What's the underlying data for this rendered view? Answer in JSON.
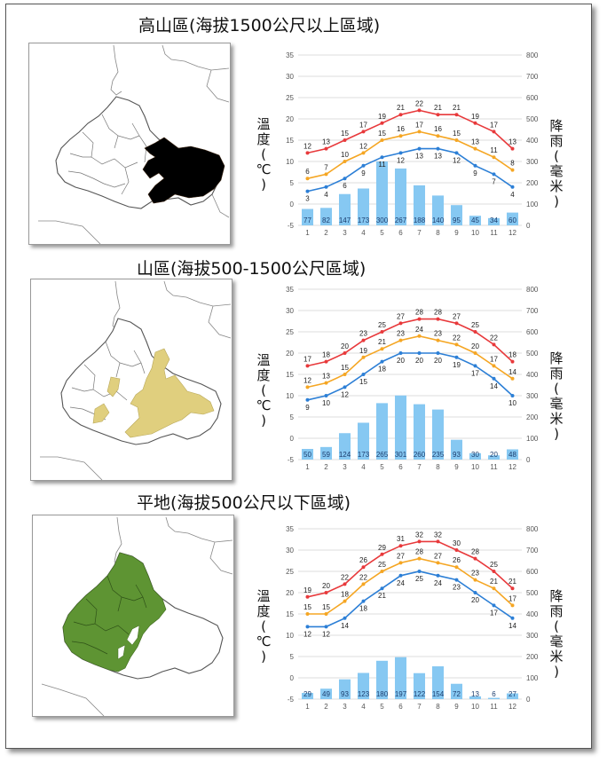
{
  "sections": [
    {
      "title": "高山區(海拔1500公尺以上區域)",
      "region_color": "#5a3417",
      "temp_axis_label": [
        "溫",
        "度",
        "(",
        "℃",
        ")"
      ],
      "rain_axis_label": [
        "降",
        "雨",
        "(",
        "毫",
        "米",
        ")"
      ]
    },
    {
      "title": "山區(海拔500-1500公尺區域)",
      "region_color": "#e0cf7e",
      "temp_axis_label": [
        "溫",
        "度",
        "(",
        "℃",
        ")"
      ],
      "rain_axis_label": [
        "降",
        "雨",
        "(",
        "毫",
        "米",
        ")"
      ]
    },
    {
      "title": "平地(海拔500公尺以下區域)",
      "region_color": "#5e9433",
      "temp_axis_label": [
        "溫",
        "度",
        "(",
        "℃",
        ")"
      ],
      "rain_axis_label": [
        "降",
        "雨",
        "(",
        "毫",
        "米",
        ")"
      ]
    }
  ],
  "colors": {
    "max_line": "#e8393b",
    "mean_line": "#f5a623",
    "min_line": "#2c7fd6",
    "rain_bar": "#86c8f2",
    "grid": "#dddddd"
  },
  "chart_data": [
    {
      "type": "bar+line",
      "x": [
        1,
        2,
        3,
        4,
        5,
        6,
        7,
        8,
        9,
        10,
        11,
        12
      ],
      "temp_ylim": [
        -5,
        35
      ],
      "temp_ticks": [
        -5,
        0,
        5,
        10,
        15,
        20,
        25,
        30,
        35
      ],
      "rain_ylim": [
        0,
        800
      ],
      "rain_ticks": [
        0,
        100,
        200,
        300,
        400,
        500,
        600,
        700,
        800
      ],
      "series": [
        {
          "key": "max",
          "values": [
            12,
            13,
            15,
            17,
            19,
            21,
            22,
            21,
            21,
            19,
            17,
            13
          ]
        },
        {
          "key": "mean",
          "values": [
            6,
            7,
            10,
            12,
            15,
            16,
            17,
            16,
            15,
            13,
            11,
            8
          ]
        },
        {
          "key": "min",
          "values": [
            3,
            4,
            6,
            9,
            11,
            12,
            13,
            13,
            12,
            9,
            7,
            4
          ]
        }
      ],
      "rain": [
        77,
        82,
        147,
        173,
        300,
        267,
        188,
        140,
        95,
        45,
        34,
        60
      ]
    },
    {
      "type": "bar+line",
      "x": [
        1,
        2,
        3,
        4,
        5,
        6,
        7,
        8,
        9,
        10,
        11,
        12
      ],
      "temp_ylim": [
        -5,
        35
      ],
      "temp_ticks": [
        -5,
        0,
        5,
        10,
        15,
        20,
        25,
        30,
        35
      ],
      "rain_ylim": [
        0,
        800
      ],
      "rain_ticks": [
        0,
        100,
        200,
        300,
        400,
        500,
        600,
        700,
        800
      ],
      "series": [
        {
          "key": "max",
          "values": [
            17,
            18,
            20,
            23,
            25,
            27,
            28,
            28,
            27,
            25,
            22,
            18
          ]
        },
        {
          "key": "mean",
          "values": [
            12,
            13,
            15,
            19,
            21,
            23,
            24,
            23,
            22,
            20,
            17,
            14
          ]
        },
        {
          "key": "min",
          "values": [
            9,
            10,
            12,
            15,
            18,
            20,
            20,
            20,
            19,
            17,
            14,
            10
          ]
        }
      ],
      "rain": [
        50,
        59,
        124,
        173,
        265,
        301,
        260,
        235,
        93,
        30,
        20,
        48
      ]
    },
    {
      "type": "bar+line",
      "x": [
        1,
        2,
        3,
        4,
        5,
        6,
        7,
        8,
        9,
        10,
        11,
        12
      ],
      "temp_ylim": [
        -5,
        35
      ],
      "temp_ticks": [
        -5,
        0,
        5,
        10,
        15,
        20,
        25,
        30,
        35
      ],
      "rain_ylim": [
        0,
        800
      ],
      "rain_ticks": [
        0,
        100,
        200,
        300,
        400,
        500,
        600,
        700,
        800
      ],
      "series": [
        {
          "key": "max",
          "values": [
            19,
            20,
            22,
            26,
            29,
            31,
            32,
            32,
            30,
            28,
            25,
            21
          ]
        },
        {
          "key": "mean",
          "values": [
            15,
            15,
            18,
            22,
            25,
            27,
            28,
            27,
            26,
            23,
            21,
            17
          ]
        },
        {
          "key": "min",
          "values": [
            12,
            12,
            14,
            18,
            21,
            24,
            25,
            24,
            23,
            20,
            17,
            14
          ]
        }
      ],
      "rain": [
        29,
        49,
        93,
        123,
        180,
        197,
        122,
        154,
        72,
        13,
        6,
        27
      ]
    }
  ]
}
